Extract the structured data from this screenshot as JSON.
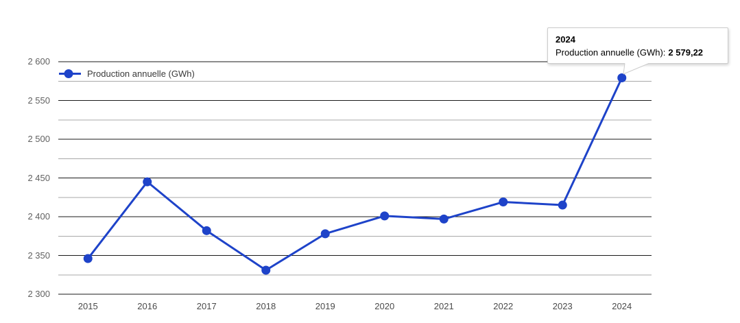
{
  "legend": {
    "label": "Production annuelle (GWh)"
  },
  "tooltip": {
    "title": "2024",
    "label": "Production annuelle (GWh):",
    "value": "2 579,22"
  },
  "chart_data": {
    "type": "line",
    "title": "",
    "xlabel": "",
    "ylabel": "",
    "categories": [
      "2015",
      "2016",
      "2017",
      "2018",
      "2019",
      "2020",
      "2021",
      "2022",
      "2023",
      "2024"
    ],
    "series": [
      {
        "name": "Production annuelle (GWh)",
        "values": [
          2346,
          2445,
          2382,
          2331,
          2378,
          2401,
          2397,
          2419,
          2415,
          2579.22
        ]
      }
    ],
    "ylim": [
      2300,
      2600
    ],
    "ytick_interval": 50,
    "ytick_labels": [
      "2 300",
      "2 350",
      "2 400",
      "2 450",
      "2 500",
      "2 550",
      "2 600"
    ],
    "minor_gridline_interval": 25,
    "grid": true,
    "legend_position": "top-left-inside",
    "highlighted_point": {
      "category": "2024",
      "value": "2 579,22"
    },
    "colors": {
      "series": "#1e43c9",
      "grid_major": "#1a1a1a",
      "grid_minor": "#a8a8a8",
      "y_axis_label": "#616161",
      "x_axis_label": "#4a4a4a",
      "tooltip_border": "#cccccc"
    }
  }
}
